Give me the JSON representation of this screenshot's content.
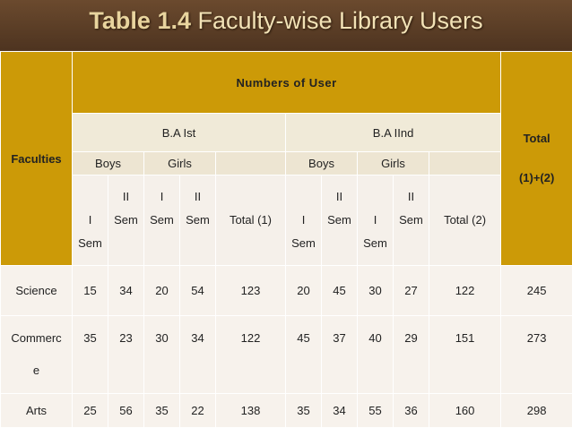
{
  "title": {
    "bold": "Table 1.4",
    "rest": "Faculty-wise Library Users"
  },
  "table": {
    "faculties_label": "Faculties",
    "numbers_label": "Numbers of User",
    "total_label_1": "Total",
    "total_label_2": "(1)+(2)",
    "ba1_label": "B.A Ist",
    "ba2_label": "B.A IInd",
    "boys_label": "Boys",
    "girls_label": "Girls",
    "sem_I": "I",
    "sem_II": "II",
    "sem_word": "Sem",
    "total1_label": "Total (1)",
    "total2_label": "Total (2)",
    "rows": [
      {
        "faculty": "Science",
        "values": [
          "15",
          "34",
          "20",
          "54",
          "123",
          "20",
          "45",
          "30",
          "27",
          "122",
          "245"
        ]
      },
      {
        "faculty_line1": "Commerc",
        "faculty_line2": "e",
        "values": [
          "35",
          "23",
          "30",
          "34",
          "122",
          "45",
          "37",
          "40",
          "29",
          "151",
          "273"
        ]
      },
      {
        "faculty": "Arts",
        "values": [
          "25",
          "56",
          "35",
          "22",
          "138",
          "35",
          "34",
          "55",
          "36",
          "160",
          "298"
        ]
      }
    ]
  }
}
